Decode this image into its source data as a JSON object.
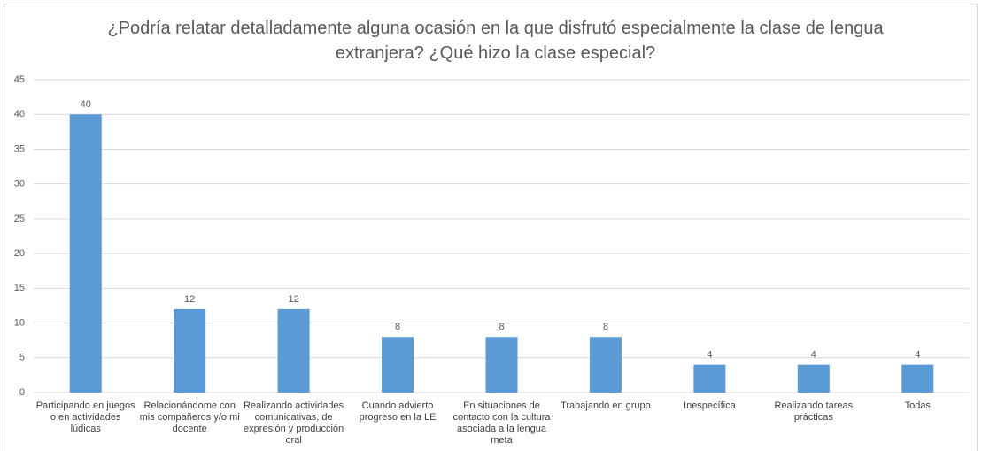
{
  "chart_data": {
    "type": "bar",
    "title": "¿Podría relatar detalladamente alguna ocasión en la que disfrutó especialmente la clase de lengua extranjera? ¿Qué hizo la clase especial?",
    "categories": [
      "Participando en juegos o en actividades lúdicas",
      "Relacionándome con mis compañeros y/o mi docente",
      "Realizando actividades comunicativas, de expresión y producción oral",
      "Cuando advierto progreso en la LE",
      "En situaciones de contacto con la cultura asociada a la lengua meta",
      "Trabajando en grupo",
      "Inespecífica",
      "Realizando tareas prácticas",
      "Todas"
    ],
    "values": [
      40,
      12,
      12,
      8,
      8,
      8,
      4,
      4,
      4
    ],
    "color": "#5b9bd5",
    "ylim": [
      0,
      45
    ],
    "yticks": [
      0,
      5,
      10,
      15,
      20,
      25,
      30,
      35,
      40,
      45
    ],
    "grid": true
  }
}
